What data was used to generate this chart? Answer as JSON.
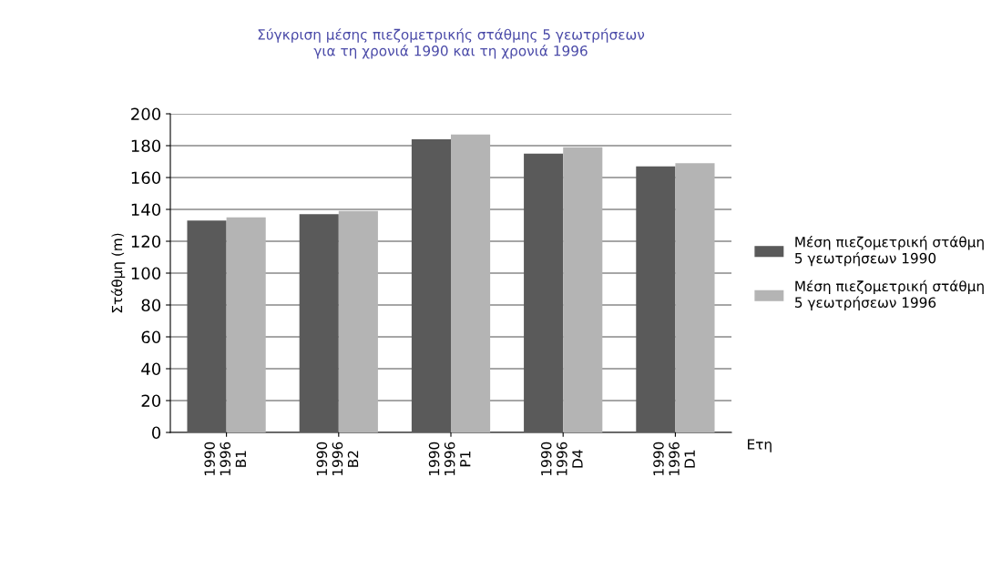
{
  "chart_data": {
    "type": "bar",
    "title": "Σύγκριση μέσης πιεζομετρικής στάθμης 5 γεωτρήσεων\nγια τη χρονιά 1990 και τη χρονιά 1996",
    "xlabel": "Ετη",
    "ylabel": "Στάθμη (m)",
    "categories": [
      "1990\n1996\nB1",
      "1990\n1996\nB2",
      "1990\n1996\nP1",
      "1990\n1996\nD4",
      "1990\n1996\nD1"
    ],
    "series": [
      {
        "name": "Μέση πιεζομετρική στάθμη\n5 γεωτρήσεων 1990",
        "color": "#5a5a5a",
        "values": [
          133,
          137,
          184,
          175,
          167
        ]
      },
      {
        "name": "Μέση πιεζομετρική στάθμη\n5 γεωτρήσεων 1996",
        "color": "#b4b4b4",
        "values": [
          135,
          139,
          187,
          179,
          169
        ]
      }
    ],
    "ylim": [
      0,
      200
    ],
    "yticks": [
      0,
      20,
      40,
      60,
      80,
      100,
      120,
      140,
      160,
      180,
      200
    ],
    "grid": "y",
    "legend": "right"
  }
}
